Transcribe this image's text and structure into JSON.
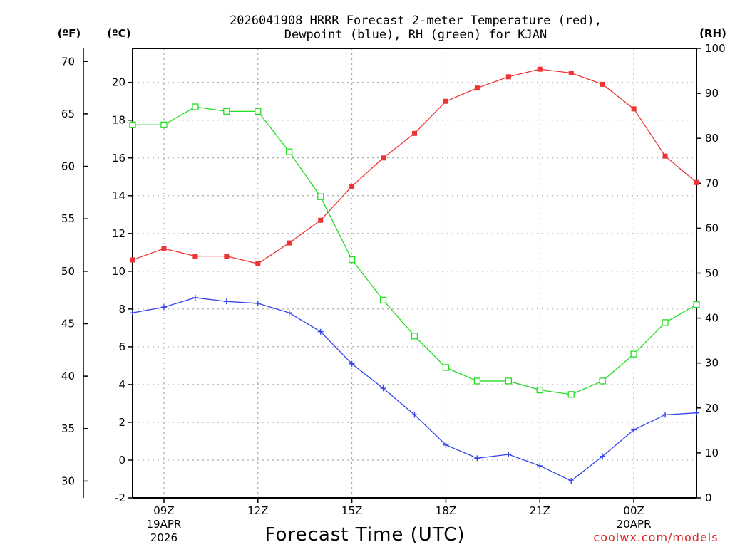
{
  "chart_data": {
    "type": "line",
    "title_line1": "2026041908 HRRR Forecast 2-meter Temperature (red),",
    "title_line2": "Dewpoint (blue), RH (green) for KJAN",
    "xlabel": "Forecast Time (UTC)",
    "credit": "coolwx.com/models",
    "unit_f": "(ºF)",
    "unit_c": "(ºC)",
    "unit_rh": "(RH)",
    "x_hours": [
      8,
      9,
      10,
      11,
      12,
      13,
      14,
      15,
      16,
      17,
      18,
      19,
      20,
      21,
      22,
      23,
      0,
      1,
      2
    ],
    "x_ticks": [
      {
        "label": "09Z",
        "sub1": "19APR",
        "sub2": "2026"
      },
      {
        "label": "12Z",
        "sub1": "",
        "sub2": ""
      },
      {
        "label": "15Z",
        "sub1": "",
        "sub2": ""
      },
      {
        "label": "18Z",
        "sub1": "",
        "sub2": ""
      },
      {
        "label": "21Z",
        "sub1": "",
        "sub2": ""
      },
      {
        "label": "00Z",
        "sub1": "20APR",
        "sub2": ""
      }
    ],
    "ylim_c": [
      -2,
      21.8
    ],
    "yticks_c": [
      "-2",
      "0",
      "2",
      "4",
      "6",
      "8",
      "10",
      "12",
      "14",
      "16",
      "18",
      "20"
    ],
    "yticks_f": [
      "30",
      "35",
      "40",
      "45",
      "50",
      "55",
      "60",
      "65",
      "70"
    ],
    "ylim_rh": [
      0,
      100
    ],
    "yticks_rh": [
      "0",
      "10",
      "20",
      "30",
      "40",
      "50",
      "60",
      "70",
      "80",
      "90",
      "100"
    ],
    "series": [
      {
        "name": "2-meter Temperature",
        "axis": "C",
        "color": "#ee3333",
        "marker": "filled-square",
        "values": [
          10.6,
          11.2,
          10.8,
          10.8,
          10.4,
          11.5,
          12.7,
          14.5,
          16.0,
          17.3,
          19.0,
          19.7,
          20.3,
          20.7,
          20.5,
          19.9,
          18.6,
          16.1,
          14.7
        ]
      },
      {
        "name": "Dewpoint",
        "axis": "C",
        "color": "#3344ee",
        "marker": "plus",
        "values": [
          7.8,
          8.1,
          8.6,
          8.4,
          8.3,
          7.8,
          6.8,
          5.1,
          3.8,
          2.4,
          0.8,
          0.1,
          0.3,
          -0.3,
          -1.1,
          0.2,
          1.6,
          2.4,
          2.5
        ]
      },
      {
        "name": "RH",
        "axis": "RH",
        "color": "#22dd22",
        "marker": "open-square",
        "values": [
          83,
          83,
          87,
          86,
          86,
          77,
          67,
          53,
          44,
          36,
          29,
          26,
          26,
          24,
          23,
          26,
          32,
          39,
          43
        ]
      }
    ]
  }
}
